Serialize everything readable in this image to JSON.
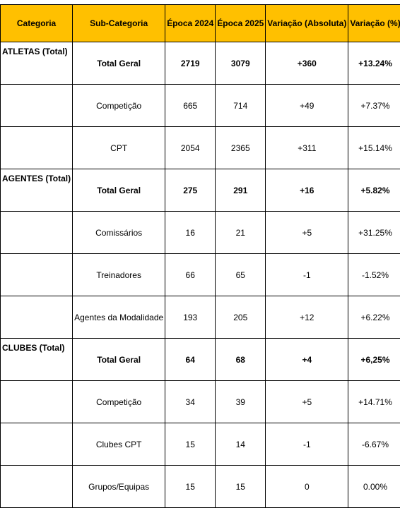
{
  "table": {
    "headers": [
      "Categoria",
      "Sub-Categoria",
      "Época 2024",
      "Época 2025",
      "Variação (Absoluta)",
      "Variação (%)"
    ],
    "rows": [
      {
        "categoria": "ATLETAS (Total)",
        "sub": "Total Geral",
        "e2024": "2719",
        "e2025": "3079",
        "abs": "+360",
        "pct": "+13.24%",
        "bold": true
      },
      {
        "categoria": "",
        "sub": "Competição",
        "e2024": "665",
        "e2025": "714",
        "abs": "+49",
        "pct": "+7.37%",
        "bold": false
      },
      {
        "categoria": "",
        "sub": "CPT",
        "e2024": "2054",
        "e2025": "2365",
        "abs": "+311",
        "pct": "+15.14%",
        "bold": false
      },
      {
        "categoria": "AGENTES (Total)",
        "sub": "Total Geral",
        "e2024": "275",
        "e2025": "291",
        "abs": "+16",
        "pct": "+5.82%",
        "bold": true
      },
      {
        "categoria": "",
        "sub": "Comissários",
        "e2024": "16",
        "e2025": "21",
        "abs": "+5",
        "pct": "+31.25%",
        "bold": false
      },
      {
        "categoria": "",
        "sub": "Treinadores",
        "e2024": "66",
        "e2025": "65",
        "abs": "-1",
        "pct": "-1.52%",
        "bold": false
      },
      {
        "categoria": "",
        "sub": "Agentes da Modalidade",
        "e2024": "193",
        "e2025": "205",
        "abs": "+12",
        "pct": "+6.22%",
        "bold": false
      },
      {
        "categoria": "CLUBES (Total)",
        "sub": "Total Geral",
        "e2024": "64",
        "e2025": "68",
        "abs": "+4",
        "pct": "+6,25%",
        "bold": true
      },
      {
        "categoria": "",
        "sub": "Competição",
        "e2024": "34",
        "e2025": "39",
        "abs": "+5",
        "pct": "+14.71%",
        "bold": false
      },
      {
        "categoria": "",
        "sub": "Clubes CPT",
        "e2024": "15",
        "e2025": "14",
        "abs": "-1",
        "pct": "-6.67%",
        "bold": false
      },
      {
        "categoria": "",
        "sub": "Grupos/Equipas",
        "e2024": "15",
        "e2025": "15",
        "abs": "0",
        "pct": "0.00%",
        "bold": false
      }
    ]
  },
  "colors": {
    "header_background": "#ffc000",
    "border": "#000000",
    "text": "#000000"
  }
}
